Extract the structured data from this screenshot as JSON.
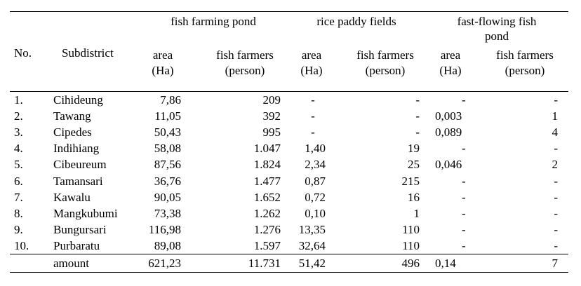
{
  "header": {
    "no": "No.",
    "subdistrict": "Subdistrict",
    "groups": [
      {
        "lines": [
          "fish farming pond"
        ]
      },
      {
        "lines": [
          "rice paddy fields"
        ]
      },
      {
        "lines": [
          "fast-flowing fish",
          "pond"
        ]
      }
    ],
    "area": [
      "area",
      "(Ha)"
    ],
    "farmers": [
      "fish farmers",
      "(person)"
    ]
  },
  "rows": [
    {
      "no": "1.",
      "name": "Cihideung",
      "v": [
        "7,86",
        "209",
        "-",
        "-",
        "-",
        "-"
      ]
    },
    {
      "no": "2.",
      "name": "Tawang",
      "v": [
        "11,05",
        "392",
        "-",
        "-",
        "0,003",
        "1"
      ]
    },
    {
      "no": "3.",
      "name": "Cipedes",
      "v": [
        "50,43",
        "995",
        "-",
        "-",
        "0,089",
        "4"
      ]
    },
    {
      "no": "4.",
      "name": "Indihiang",
      "v": [
        "58,08",
        "1.047",
        "1,40",
        "19",
        "-",
        "-"
      ]
    },
    {
      "no": "5.",
      "name": "Cibeureum",
      "v": [
        "87,56",
        "1.824",
        "2,34",
        "25",
        "0,046",
        "2"
      ]
    },
    {
      "no": "6.",
      "name": "Tamansari",
      "v": [
        "36,76",
        "1.477",
        "0,87",
        "215",
        "-",
        "-"
      ]
    },
    {
      "no": "7.",
      "name": "Kawalu",
      "v": [
        "90,05",
        "1.652",
        "0,72",
        "16",
        "-",
        "-"
      ]
    },
    {
      "no": "8.",
      "name": "Mangkubumi",
      "v": [
        "73,38",
        "1.262",
        "0,10",
        "1",
        "-",
        "-"
      ]
    },
    {
      "no": "9.",
      "name": "Bungursari",
      "v": [
        "116,98",
        "1.276",
        "13,35",
        "110",
        "-",
        "-"
      ]
    },
    {
      "no": "10.",
      "name": "Purbaratu",
      "v": [
        "89,08",
        "1.597",
        "32,64",
        "110",
        "-",
        "-"
      ]
    }
  ],
  "total": {
    "no": "",
    "name": "amount",
    "v": [
      "621,23",
      "11.731",
      "51,42",
      "496",
      "0,14",
      "7"
    ]
  }
}
